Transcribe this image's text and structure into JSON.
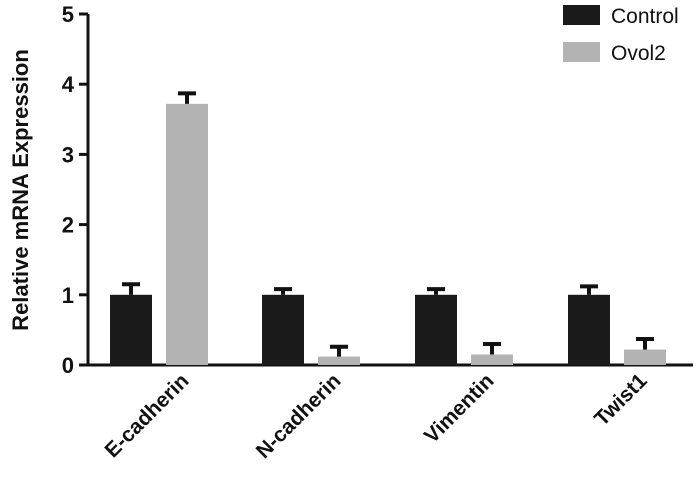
{
  "chart_data": {
    "type": "bar",
    "ylabel": "Relative mRNA Expression",
    "xlabel": "",
    "ylim": [
      0,
      5
    ],
    "yticks": [
      0,
      1,
      2,
      3,
      4,
      5
    ],
    "categories": [
      "E-cadherin",
      "N-cadherin",
      "Vimentin",
      "Twist1"
    ],
    "series": [
      {
        "name": "Control",
        "color": "#1a1a1a",
        "values": [
          1.0,
          1.0,
          1.0,
          1.0
        ],
        "errors": [
          0.15,
          0.08,
          0.08,
          0.12
        ]
      },
      {
        "name": "Ovol2",
        "color": "#b3b3b3",
        "values": [
          3.72,
          0.12,
          0.15,
          0.22
        ],
        "errors": [
          0.15,
          0.14,
          0.15,
          0.15
        ]
      }
    ],
    "legend": {
      "position": "top-right",
      "entries": [
        "Control",
        "Ovol2"
      ]
    },
    "grid": false
  }
}
